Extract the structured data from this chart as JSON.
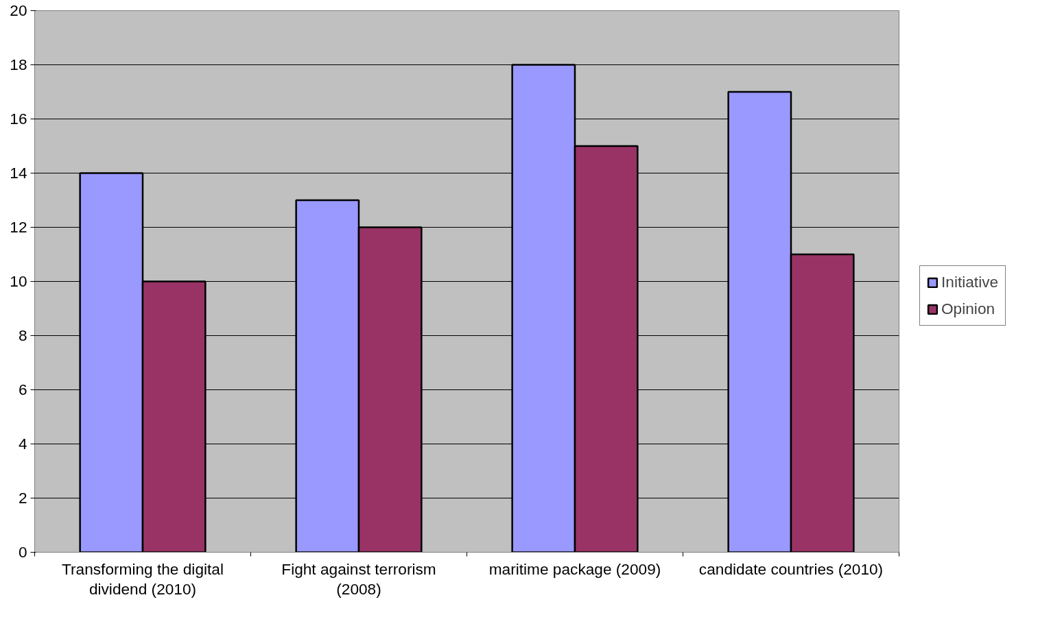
{
  "chart_data": {
    "type": "bar",
    "categories": [
      "Transforming the digital dividend (2010)",
      "Fight against terrorism (2008)",
      "maritime package (2009)",
      "candidate countries (2010)"
    ],
    "series": [
      {
        "name": "Initiative",
        "color": "#9999ff",
        "values": [
          14,
          13,
          18,
          17
        ]
      },
      {
        "name": "Opinion",
        "color": "#993366",
        "values": [
          10,
          12,
          15,
          11
        ]
      }
    ],
    "ylim": [
      0,
      20
    ],
    "yticks": [
      0,
      2,
      4,
      6,
      8,
      10,
      12,
      14,
      16,
      18,
      20
    ],
    "grid": "y",
    "legend": "right"
  }
}
